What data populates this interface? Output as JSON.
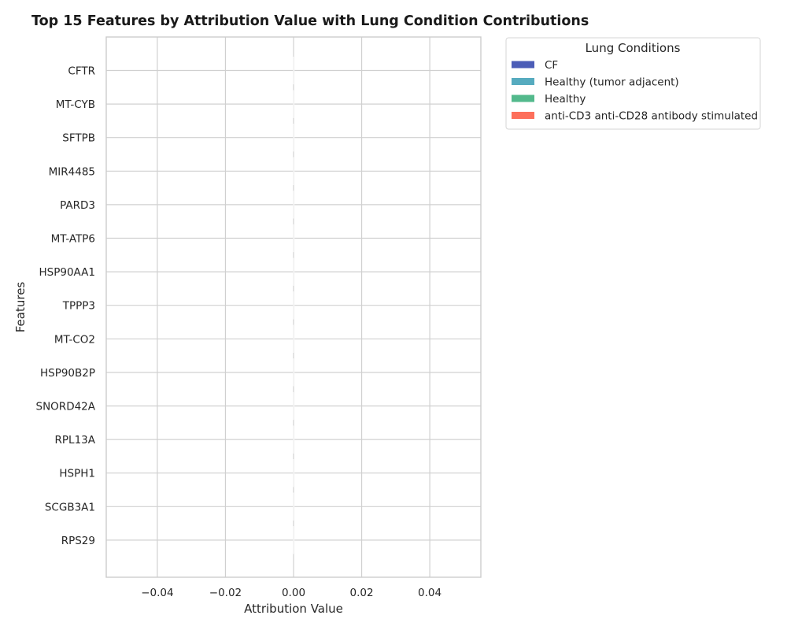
{
  "chart_data": {
    "type": "bar",
    "orientation": "horizontal",
    "stacked": true,
    "title": "Top 15 Features by Attribution Value with Lung Condition Contributions",
    "xlabel": "Attribution Value",
    "ylabel": "Features",
    "xlim": [
      -0.055,
      0.055
    ],
    "xticks": [
      -0.04,
      -0.02,
      0.0,
      0.02,
      0.04
    ],
    "xtick_labels": [
      "−0.04",
      "−0.02",
      "0.00",
      "0.02",
      "0.04"
    ],
    "categories": [
      "CFTR",
      "MT-CYB",
      "SFTPB",
      "MIR4485",
      "PARD3",
      "MT-ATP6",
      "HSP90AA1",
      "TPPP3",
      "MT-CO2",
      "HSP90B2P",
      "SNORD42A",
      "RPL13A",
      "HSPH1",
      "SCGB3A1",
      "RPS29"
    ],
    "series": [
      {
        "name": "CF",
        "color": "#4c5db7",
        "values": [
          0,
          0,
          0,
          0,
          0,
          0,
          0,
          0,
          0,
          0,
          0,
          0,
          0,
          0,
          0
        ]
      },
      {
        "name": "Healthy (tumor adjacent)",
        "color": "#56abbf",
        "values": [
          0,
          0,
          0,
          0,
          0,
          0,
          0,
          0,
          0,
          0,
          0,
          0,
          0,
          0,
          0
        ]
      },
      {
        "name": "Healthy",
        "color": "#53b98c",
        "values": [
          0,
          0,
          0,
          0,
          0,
          0,
          0,
          0,
          0,
          0,
          0,
          0,
          0,
          0,
          0
        ]
      },
      {
        "name": "anti-CD3 anti-CD28 antibody stimulated",
        "color": "#fd6f5b",
        "values": [
          0,
          0,
          0,
          0,
          0,
          0,
          0,
          0,
          0,
          0,
          0,
          0,
          0,
          0,
          0
        ]
      }
    ],
    "legend": {
      "title": "Lung Conditions",
      "placement": "outside-right"
    },
    "grid": true
  }
}
